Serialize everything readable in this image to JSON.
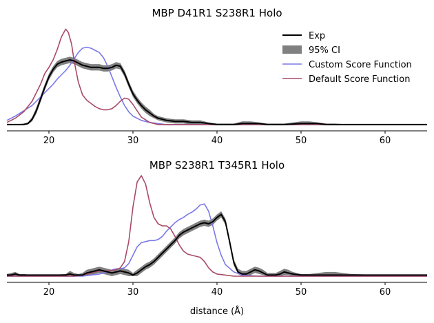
{
  "chart_data": [
    {
      "type": "line",
      "title": "MBP D41R1 S238R1 Holo",
      "xlabel": "",
      "ylabel": "",
      "xlim": [
        15,
        65
      ],
      "ylim": [
        0,
        1
      ],
      "xticks": [
        "20",
        "30",
        "40",
        "50",
        "60"
      ],
      "grid": false,
      "legend": {
        "placement": "top-right",
        "entries": [
          "Exp",
          "95% CI",
          "Custom Score Function",
          "Default Score Function"
        ]
      },
      "colors": {
        "exp": "#000000",
        "ci": "#808080",
        "custom": "#7b78ea",
        "default": "#a84a66"
      },
      "series": [
        {
          "name": "Exp",
          "x": [
            15,
            16,
            17,
            17.5,
            18,
            18.5,
            19,
            19.5,
            20,
            20.5,
            21,
            21.5,
            22,
            22.5,
            23,
            23.5,
            24,
            24.5,
            25,
            25.5,
            26,
            26.5,
            27,
            27.5,
            28,
            28.5,
            29,
            29.5,
            30,
            30.5,
            31,
            31.5,
            32,
            32.5,
            33,
            33.5,
            34,
            35,
            36,
            37,
            38,
            39,
            40,
            41,
            42,
            43,
            44,
            45,
            46,
            48,
            50,
            51,
            52,
            53,
            54,
            56,
            60,
            65
          ],
          "y": [
            0.02,
            0.02,
            0.02,
            0.03,
            0.07,
            0.15,
            0.26,
            0.37,
            0.47,
            0.54,
            0.59,
            0.61,
            0.62,
            0.63,
            0.62,
            0.6,
            0.58,
            0.57,
            0.56,
            0.56,
            0.56,
            0.55,
            0.55,
            0.56,
            0.58,
            0.57,
            0.5,
            0.4,
            0.31,
            0.25,
            0.2,
            0.16,
            0.13,
            0.1,
            0.08,
            0.07,
            0.06,
            0.05,
            0.05,
            0.04,
            0.04,
            0.03,
            0.02,
            0.02,
            0.02,
            0.03,
            0.03,
            0.03,
            0.02,
            0.02,
            0.03,
            0.03,
            0.03,
            0.02,
            0.02,
            0.02,
            0.02,
            0.02
          ]
        },
        {
          "name": "95% CI",
          "x": [
            15,
            16,
            17,
            17.5,
            18,
            18.5,
            19,
            19.5,
            20,
            20.5,
            21,
            21.5,
            22,
            22.5,
            23,
            23.5,
            24,
            24.5,
            25,
            25.5,
            26,
            26.5,
            27,
            27.5,
            28,
            28.5,
            29,
            29.5,
            30,
            30.5,
            31,
            31.5,
            32,
            32.5,
            33,
            33.5,
            34,
            35,
            36,
            37,
            38,
            39,
            40,
            41,
            42,
            43,
            44,
            45,
            46,
            48,
            50,
            51,
            52,
            53,
            54,
            56,
            60,
            65
          ],
          "lower": [
            0.02,
            0.02,
            0.02,
            0.02,
            0.05,
            0.12,
            0.23,
            0.34,
            0.44,
            0.51,
            0.56,
            0.58,
            0.59,
            0.6,
            0.59,
            0.57,
            0.55,
            0.54,
            0.53,
            0.53,
            0.53,
            0.52,
            0.52,
            0.53,
            0.55,
            0.54,
            0.47,
            0.37,
            0.28,
            0.22,
            0.17,
            0.13,
            0.1,
            0.08,
            0.06,
            0.05,
            0.04,
            0.03,
            0.03,
            0.02,
            0.02,
            0.02,
            0.02,
            0.02,
            0.02,
            0.02,
            0.02,
            0.02,
            0.02,
            0.02,
            0.02,
            0.02,
            0.02,
            0.02,
            0.02,
            0.02,
            0.02,
            0.02
          ],
          "upper": [
            0.02,
            0.02,
            0.03,
            0.04,
            0.09,
            0.18,
            0.29,
            0.4,
            0.5,
            0.57,
            0.62,
            0.64,
            0.65,
            0.66,
            0.65,
            0.63,
            0.61,
            0.6,
            0.59,
            0.59,
            0.59,
            0.58,
            0.58,
            0.59,
            0.61,
            0.6,
            0.53,
            0.43,
            0.34,
            0.28,
            0.23,
            0.19,
            0.16,
            0.12,
            0.1,
            0.09,
            0.08,
            0.07,
            0.07,
            0.06,
            0.06,
            0.04,
            0.03,
            0.03,
            0.03,
            0.05,
            0.05,
            0.04,
            0.03,
            0.03,
            0.05,
            0.05,
            0.04,
            0.03,
            0.03,
            0.02,
            0.02,
            0.02
          ]
        },
        {
          "name": "Custom Score Function",
          "x": [
            15,
            16,
            17,
            18,
            19,
            20,
            20.5,
            21,
            21.5,
            22,
            22.5,
            23,
            23.5,
            24,
            24.5,
            25,
            25.5,
            26,
            26.5,
            27,
            27.5,
            28,
            28.5,
            29,
            29.5,
            30,
            31,
            32,
            33,
            34,
            36,
            40,
            65
          ],
          "y": [
            0.06,
            0.1,
            0.15,
            0.2,
            0.28,
            0.36,
            0.4,
            0.45,
            0.49,
            0.53,
            0.58,
            0.64,
            0.7,
            0.74,
            0.75,
            0.74,
            0.72,
            0.7,
            0.65,
            0.57,
            0.47,
            0.37,
            0.28,
            0.2,
            0.14,
            0.1,
            0.06,
            0.04,
            0.03,
            0.02,
            0.02,
            0.02,
            0.02
          ]
        },
        {
          "name": "Default Score Function",
          "x": [
            15,
            16,
            17,
            18,
            19,
            19.5,
            20,
            20.5,
            21,
            21.5,
            22,
            22.3,
            22.7,
            23,
            23.5,
            24,
            24.5,
            25,
            25.5,
            26,
            26.5,
            27,
            27.5,
            28,
            28.5,
            29,
            29.5,
            30,
            30.5,
            31,
            32,
            33,
            34,
            36,
            40,
            65
          ],
          "y": [
            0.04,
            0.08,
            0.14,
            0.24,
            0.4,
            0.5,
            0.56,
            0.63,
            0.73,
            0.85,
            0.92,
            0.89,
            0.78,
            0.62,
            0.42,
            0.3,
            0.25,
            0.22,
            0.19,
            0.17,
            0.16,
            0.16,
            0.17,
            0.2,
            0.24,
            0.27,
            0.26,
            0.21,
            0.15,
            0.09,
            0.04,
            0.02,
            0.02,
            0.02,
            0.02,
            0.02
          ]
        }
      ]
    },
    {
      "type": "line",
      "title": "MBP S238R1 T345R1 Holo",
      "xlabel": "distance (Å)",
      "ylabel": "",
      "xlim": [
        15,
        65
      ],
      "ylim": [
        0,
        1
      ],
      "xticks": [
        "20",
        "30",
        "40",
        "50",
        "60"
      ],
      "grid": false,
      "colors": {
        "exp": "#000000",
        "ci": "#808080",
        "custom": "#7b78ea",
        "default": "#a84a66"
      },
      "series": [
        {
          "name": "Exp",
          "x": [
            15,
            15.5,
            16,
            16.5,
            17,
            18,
            20,
            22,
            22.5,
            23,
            23.5,
            24,
            24.5,
            25,
            25.5,
            26,
            26.5,
            27,
            27.5,
            28,
            28.5,
            29,
            29.5,
            30,
            30.5,
            31,
            31.5,
            32,
            32.5,
            33,
            33.5,
            34,
            34.5,
            35,
            35.5,
            36,
            36.5,
            37,
            37.5,
            38,
            38.5,
            39,
            39.5,
            40,
            40.5,
            41,
            41.5,
            42,
            42.5,
            43,
            43.5,
            44,
            44.5,
            45,
            45.5,
            46,
            46.5,
            47,
            47.5,
            48,
            48.5,
            49,
            50,
            51,
            52,
            53,
            54,
            55,
            56,
            60,
            65
          ],
          "y": [
            0.03,
            0.03,
            0.04,
            0.03,
            0.03,
            0.03,
            0.03,
            0.03,
            0.04,
            0.03,
            0.03,
            0.03,
            0.05,
            0.06,
            0.07,
            0.08,
            0.07,
            0.06,
            0.05,
            0.06,
            0.07,
            0.06,
            0.05,
            0.03,
            0.05,
            0.08,
            0.11,
            0.13,
            0.16,
            0.2,
            0.24,
            0.28,
            0.32,
            0.36,
            0.41,
            0.44,
            0.46,
            0.48,
            0.5,
            0.52,
            0.53,
            0.52,
            0.54,
            0.58,
            0.61,
            0.54,
            0.35,
            0.15,
            0.06,
            0.04,
            0.04,
            0.06,
            0.08,
            0.07,
            0.05,
            0.03,
            0.03,
            0.03,
            0.04,
            0.06,
            0.05,
            0.04,
            0.03,
            0.03,
            0.03,
            0.03,
            0.03,
            0.03,
            0.03,
            0.03,
            0.03
          ]
        },
        {
          "name": "95% CI",
          "x": [
            15,
            15.5,
            16,
            16.5,
            17,
            18,
            20,
            22,
            22.5,
            23,
            23.5,
            24,
            24.5,
            25,
            25.5,
            26,
            26.5,
            27,
            27.5,
            28,
            28.5,
            29,
            29.5,
            30,
            30.5,
            31,
            31.5,
            32,
            32.5,
            33,
            33.5,
            34,
            34.5,
            35,
            35.5,
            36,
            36.5,
            37,
            37.5,
            38,
            38.5,
            39,
            39.5,
            40,
            40.5,
            41,
            41.5,
            42,
            42.5,
            43,
            43.5,
            44,
            44.5,
            45,
            45.5,
            46,
            46.5,
            47,
            47.5,
            48,
            48.5,
            49,
            50,
            51,
            52,
            53,
            54,
            55,
            56,
            60,
            65
          ],
          "lower": [
            0.02,
            0.02,
            0.02,
            0.02,
            0.02,
            0.02,
            0.02,
            0.02,
            0.02,
            0.02,
            0.02,
            0.02,
            0.02,
            0.03,
            0.04,
            0.05,
            0.04,
            0.03,
            0.02,
            0.03,
            0.04,
            0.03,
            0.02,
            0.02,
            0.02,
            0.05,
            0.08,
            0.1,
            0.13,
            0.17,
            0.21,
            0.25,
            0.29,
            0.33,
            0.38,
            0.41,
            0.43,
            0.45,
            0.47,
            0.49,
            0.5,
            0.49,
            0.51,
            0.55,
            0.58,
            0.51,
            0.32,
            0.12,
            0.04,
            0.02,
            0.02,
            0.03,
            0.05,
            0.04,
            0.03,
            0.02,
            0.02,
            0.02,
            0.02,
            0.03,
            0.03,
            0.02,
            0.02,
            0.02,
            0.02,
            0.02,
            0.02,
            0.02,
            0.02,
            0.02,
            0.02
          ],
          "upper": [
            0.04,
            0.05,
            0.06,
            0.04,
            0.04,
            0.03,
            0.03,
            0.04,
            0.07,
            0.05,
            0.04,
            0.05,
            0.08,
            0.09,
            0.1,
            0.11,
            0.1,
            0.09,
            0.08,
            0.09,
            0.1,
            0.09,
            0.08,
            0.05,
            0.08,
            0.11,
            0.14,
            0.16,
            0.19,
            0.23,
            0.27,
            0.31,
            0.35,
            0.39,
            0.44,
            0.47,
            0.49,
            0.51,
            0.53,
            0.55,
            0.56,
            0.55,
            0.57,
            0.61,
            0.64,
            0.57,
            0.38,
            0.18,
            0.09,
            0.07,
            0.07,
            0.09,
            0.11,
            0.1,
            0.08,
            0.05,
            0.05,
            0.05,
            0.07,
            0.09,
            0.08,
            0.06,
            0.04,
            0.04,
            0.05,
            0.06,
            0.06,
            0.05,
            0.04,
            0.03,
            0.03
          ]
        },
        {
          "name": "Custom Score Function",
          "x": [
            15,
            20,
            24,
            25,
            26,
            27,
            27.5,
            28,
            28.5,
            29,
            29.5,
            30,
            30.5,
            31,
            31.5,
            32,
            32.5,
            33,
            33.5,
            34,
            34.5,
            35,
            35.5,
            36,
            36.5,
            37,
            37.5,
            38,
            38.5,
            39,
            39.5,
            40,
            40.5,
            41,
            42,
            43,
            45,
            65
          ],
          "y": [
            0.02,
            0.02,
            0.02,
            0.03,
            0.04,
            0.06,
            0.08,
            0.09,
            0.09,
            0.1,
            0.14,
            0.22,
            0.3,
            0.34,
            0.35,
            0.36,
            0.36,
            0.37,
            0.4,
            0.45,
            0.49,
            0.53,
            0.56,
            0.58,
            0.61,
            0.63,
            0.66,
            0.7,
            0.71,
            0.64,
            0.5,
            0.34,
            0.22,
            0.13,
            0.06,
            0.03,
            0.02,
            0.02
          ]
        },
        {
          "name": "Default Score Function",
          "x": [
            15,
            20,
            23,
            24,
            25,
            26,
            27,
            28,
            28.5,
            29,
            29.5,
            30,
            30.5,
            31,
            31.5,
            32,
            32.5,
            33,
            33.5,
            34,
            34.5,
            35,
            35.5,
            36,
            36.5,
            37,
            37.5,
            38,
            38.5,
            39,
            39.5,
            40,
            41,
            42,
            43,
            45,
            65
          ],
          "y": [
            0.02,
            0.02,
            0.02,
            0.03,
            0.05,
            0.07,
            0.07,
            0.08,
            0.1,
            0.16,
            0.35,
            0.68,
            0.92,
            0.98,
            0.9,
            0.72,
            0.58,
            0.52,
            0.5,
            0.5,
            0.47,
            0.4,
            0.32,
            0.26,
            0.23,
            0.22,
            0.21,
            0.2,
            0.16,
            0.1,
            0.06,
            0.04,
            0.03,
            0.02,
            0.02,
            0.02,
            0.02
          ]
        }
      ]
    }
  ]
}
